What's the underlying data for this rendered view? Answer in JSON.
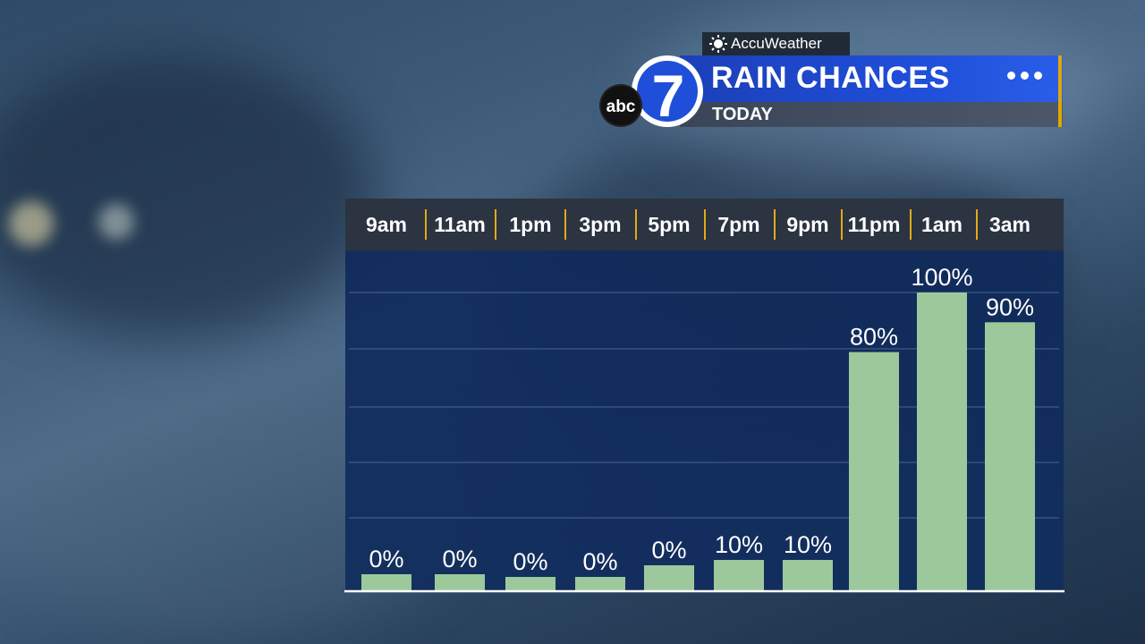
{
  "header": {
    "brand": "AccuWeather",
    "title": "RAIN CHANCES",
    "subtitle": "TODAY",
    "logo_text": "abc",
    "logo_number": "7"
  },
  "colors": {
    "bar": "#9dc89b",
    "plot_bg": "#102b5c",
    "title_bar": "#1f4ed8",
    "separator": "#e6a817"
  },
  "chart_data": {
    "type": "bar",
    "categories": [
      "9am",
      "11am",
      "1pm",
      "3pm",
      "5pm",
      "7pm",
      "9pm",
      "11pm",
      "1am",
      "3am"
    ],
    "values": [
      0,
      0,
      0,
      0,
      0,
      10,
      10,
      80,
      100,
      90
    ],
    "labels": [
      "0%",
      "0%",
      "0%",
      "0%",
      "0%",
      "10%",
      "10%",
      "80%",
      "100%",
      "90%"
    ],
    "unit": "%",
    "ylim": [
      0,
      100
    ],
    "grid": true
  }
}
